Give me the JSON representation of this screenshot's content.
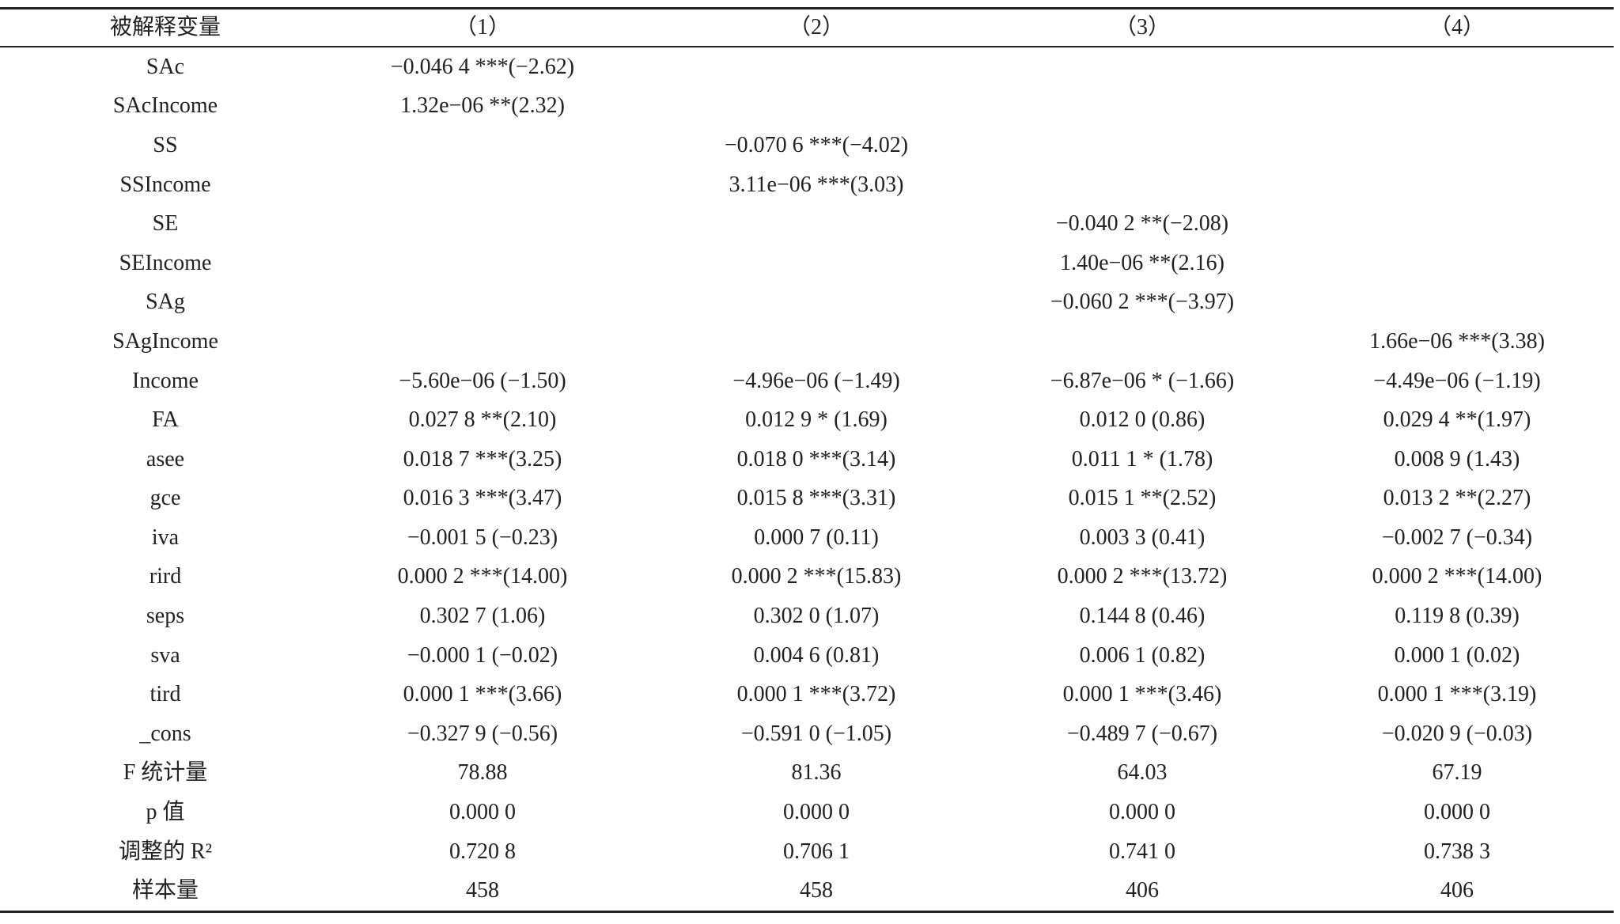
{
  "table": {
    "header": [
      "被解释变量",
      "（1）",
      "（2）",
      "（3）",
      "（4）"
    ],
    "rows": [
      [
        "SAc",
        "−0.046 4 ***(−2.62)",
        null,
        null,
        null
      ],
      [
        "SAcIncome",
        "1.32e−06 **(2.32)",
        null,
        null,
        null
      ],
      [
        "SS",
        null,
        "−0.070 6 ***(−4.02)",
        null,
        null
      ],
      [
        "SSIncome",
        null,
        "3.11e−06 ***(3.03)",
        null,
        null
      ],
      [
        "SE",
        null,
        null,
        "−0.040 2 **(−2.08)",
        null
      ],
      [
        "SEIncome",
        null,
        null,
        "1.40e−06 **(2.16)",
        null
      ],
      [
        "SAg",
        null,
        null,
        "−0.060 2 ***(−3.97)",
        null
      ],
      [
        "SAgIncome",
        null,
        null,
        null,
        "1.66e−06 ***(3.38)"
      ],
      [
        "Income",
        "−5.60e−06 (−1.50)",
        "−4.96e−06 (−1.49)",
        "−6.87e−06 * (−1.66)",
        "−4.49e−06 (−1.19)"
      ],
      [
        "FA",
        "0.027 8 **(2.10)",
        "0.012 9 * (1.69)",
        "0.012 0 (0.86)",
        "0.029 4 **(1.97)"
      ],
      [
        "asee",
        "0.018 7 ***(3.25)",
        "0.018 0 ***(3.14)",
        "0.011 1 * (1.78)",
        "0.008 9 (1.43)"
      ],
      [
        "gce",
        "0.016 3 ***(3.47)",
        "0.015 8 ***(3.31)",
        "0.015 1 **(2.52)",
        "0.013 2 **(2.27)"
      ],
      [
        "iva",
        "−0.001 5 (−0.23)",
        "0.000 7 (0.11)",
        "0.003 3 (0.41)",
        "−0.002 7 (−0.34)"
      ],
      [
        "rird",
        "0.000 2 ***(14.00)",
        "0.000 2 ***(15.83)",
        "0.000 2 ***(13.72)",
        "0.000 2 ***(14.00)"
      ],
      [
        "seps",
        "0.302 7 (1.06)",
        "0.302 0 (1.07)",
        "0.144 8 (0.46)",
        "0.119 8 (0.39)"
      ],
      [
        "sva",
        "−0.000 1 (−0.02)",
        "0.004 6 (0.81)",
        "0.006 1 (0.82)",
        "0.000 1 (0.02)"
      ],
      [
        "tird",
        "0.000 1 ***(3.66)",
        "0.000 1 ***(3.72)",
        "0.000 1 ***(3.46)",
        "0.000 1 ***(3.19)"
      ],
      [
        "_cons",
        "−0.327 9 (−0.56)",
        "−0.591 0 (−1.05)",
        "−0.489 7 (−0.67)",
        "−0.020 9 (−0.03)"
      ],
      [
        "F 统计量",
        "78.88",
        "81.36",
        "64.03",
        "67.19"
      ],
      [
        "p 值",
        "0.000 0",
        "0.000 0",
        "0.000 0",
        "0.000 0"
      ],
      [
        "调整的 R²",
        "0.720 8",
        "0.706 1",
        "0.741 0",
        "0.738 3"
      ],
      [
        "样本量",
        "458",
        "458",
        "406",
        "406"
      ]
    ]
  }
}
